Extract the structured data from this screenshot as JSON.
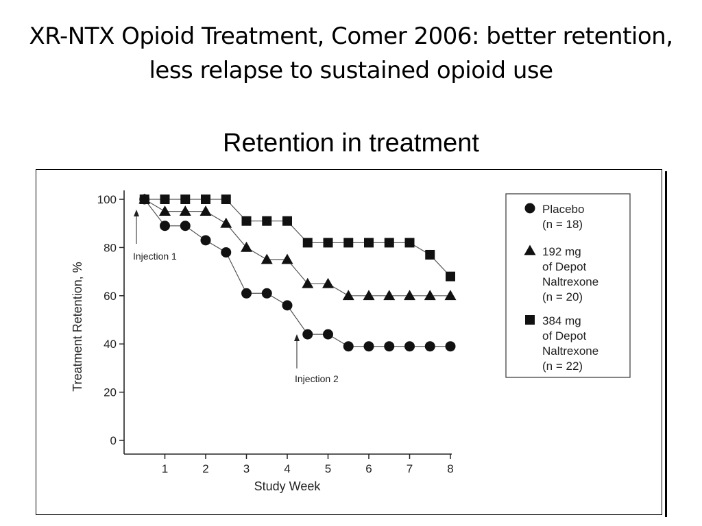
{
  "slide": {
    "title": "XR-NTX Opioid Treatment, Comer 2006: better retention, less relapse to sustained opioid use",
    "subtitle": "Retention in treatment"
  },
  "chart_data": {
    "type": "line",
    "xlabel": "Study Week",
    "ylabel": "Treatment Retention, %",
    "xlim": [
      0,
      8
    ],
    "ylim": [
      0,
      100
    ],
    "x_ticks": [
      1,
      2,
      3,
      4,
      5,
      6,
      7,
      8
    ],
    "y_ticks": [
      0,
      20,
      40,
      60,
      80,
      100
    ],
    "grid": false,
    "legend_position": "top-right",
    "series": [
      {
        "name": "Placebo",
        "legend_lines": [
          "Placebo",
          "(n = 18)"
        ],
        "marker": "circle",
        "x": [
          0.5,
          1,
          1.5,
          2,
          2.5,
          3,
          3.5,
          4,
          4.5,
          5,
          5.5,
          6,
          6.5,
          7,
          7.5,
          8
        ],
        "values": [
          100,
          89,
          89,
          83,
          78,
          61,
          61,
          56,
          44,
          44,
          39,
          39,
          39,
          39,
          39,
          39
        ]
      },
      {
        "name": "192 mg of Depot Naltrexone",
        "legend_lines": [
          "192 mg",
          "of Depot",
          "Naltrexone",
          "(n = 20)"
        ],
        "marker": "triangle",
        "x": [
          0.5,
          1,
          1.5,
          2,
          2.5,
          3,
          3.5,
          4,
          4.5,
          5,
          5.5,
          6,
          6.5,
          7,
          7.5,
          8
        ],
        "values": [
          100,
          95,
          95,
          95,
          90,
          80,
          75,
          75,
          65,
          65,
          60,
          60,
          60,
          60,
          60,
          60
        ]
      },
      {
        "name": "384 mg of Depot Naltrexone",
        "legend_lines": [
          "384 mg",
          "of Depot",
          "Naltrexone",
          "(n = 22)"
        ],
        "marker": "square",
        "x": [
          0.5,
          1,
          1.5,
          2,
          2.5,
          3,
          3.5,
          4,
          4.5,
          5,
          5.5,
          6,
          6.5,
          7,
          7.5,
          8
        ],
        "values": [
          100,
          100,
          100,
          100,
          100,
          91,
          91,
          91,
          82,
          82,
          82,
          82,
          82,
          82,
          77,
          68
        ]
      }
    ],
    "annotations": [
      {
        "text": "Injection 1",
        "x": 0.3,
        "y": 100
      },
      {
        "text": "Injection 2",
        "x": 4.25,
        "y": 44
      }
    ]
  }
}
